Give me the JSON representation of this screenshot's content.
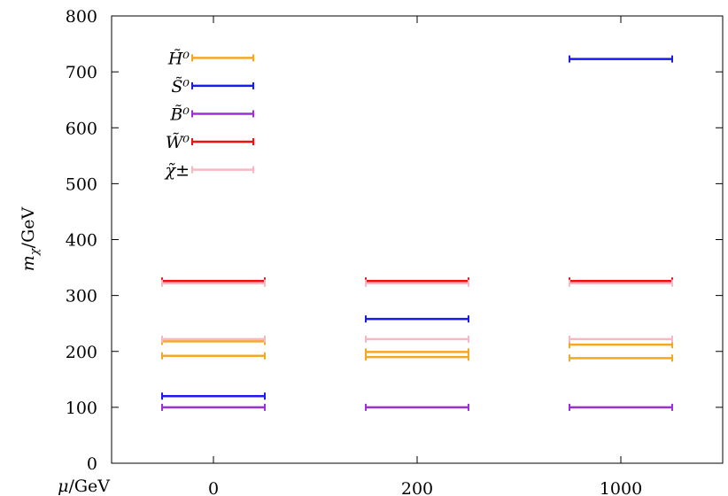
{
  "chart_data": {
    "type": "scatter",
    "xlabel": "μ/GeV",
    "ylabel": "m_χ/GeV",
    "ylim": [
      0,
      800
    ],
    "xlim": [
      -0.5,
      2.5
    ],
    "yticks": [
      "0",
      "100",
      "200",
      "300",
      "400",
      "500",
      "600",
      "700",
      "800"
    ],
    "categories": [
      "0",
      "200",
      "1000"
    ],
    "grid": false,
    "legend_position": "top-left",
    "series": [
      {
        "name": "H̃⁰",
        "key": "H0",
        "color": "#f5a623",
        "values": [
          [
            192,
            218
          ],
          [
            190,
            199
          ],
          [
            188,
            212
          ]
        ]
      },
      {
        "name": "S̃⁰",
        "key": "S0",
        "color": "#1a1aee",
        "values": [
          [
            120
          ],
          [
            258
          ],
          [
            723
          ]
        ]
      },
      {
        "name": "B̃⁰",
        "key": "B0",
        "color": "#9b30d9",
        "values": [
          [
            100
          ],
          [
            100
          ],
          [
            100
          ]
        ]
      },
      {
        "name": "W̃⁰",
        "key": "W0",
        "color": "#ee1111",
        "values": [
          [
            326
          ],
          [
            326
          ],
          [
            326
          ]
        ]
      },
      {
        "name": "χ̃±",
        "key": "Chi",
        "color": "#f7b8c4",
        "values": [
          [
            222,
            322
          ],
          [
            222,
            322
          ],
          [
            222,
            322
          ]
        ]
      }
    ]
  }
}
